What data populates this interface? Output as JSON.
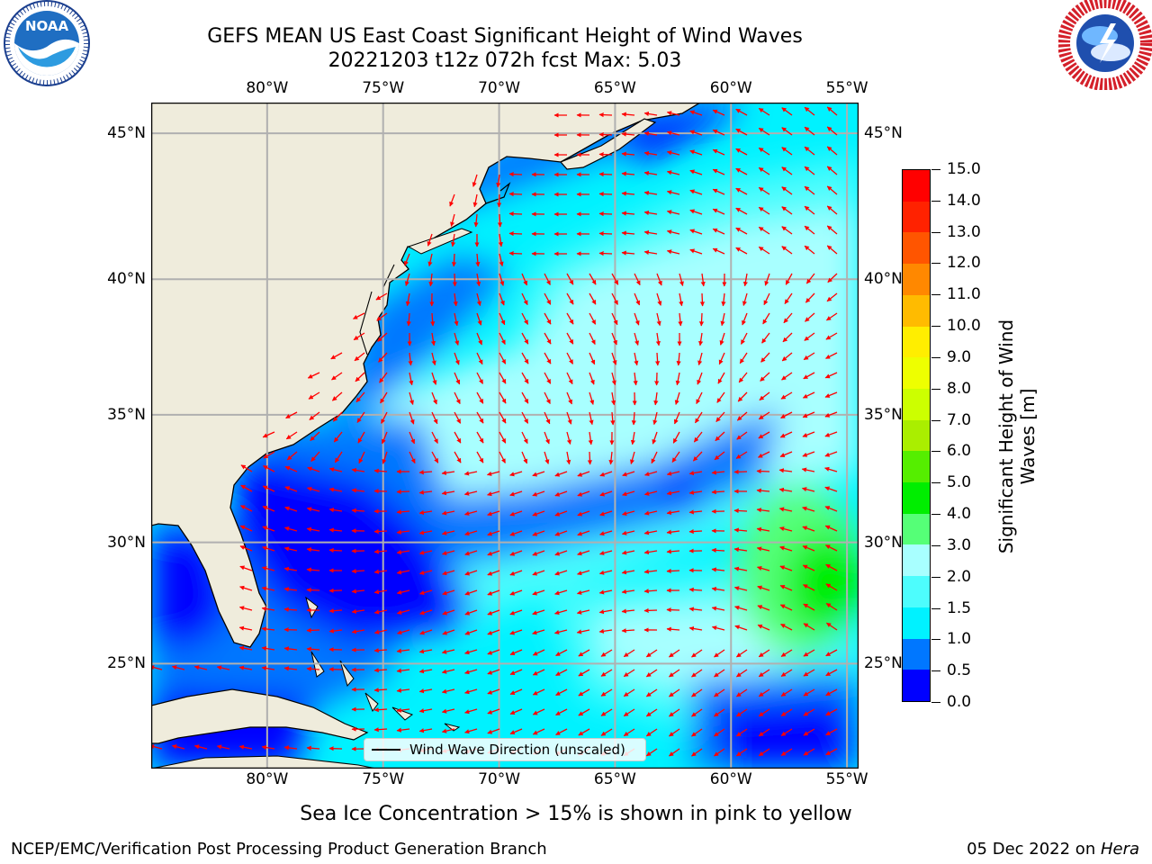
{
  "title": {
    "line1": "GEFS MEAN US East Coast Significant Height of Wind Waves",
    "line2": "20221203 t12z 072h fcst   Max: 5.03"
  },
  "logos": {
    "left": {
      "icon": "noaa-logo",
      "text": "NOAA"
    },
    "right": {
      "icon": "nws-logo",
      "text": "NATIONAL WEATHER SERVICE"
    }
  },
  "axes": {
    "lon_labels": [
      "80°W",
      "75°W",
      "70°W",
      "65°W",
      "60°W",
      "55°W"
    ],
    "lat_labels": [
      "45°N",
      "40°N",
      "35°N",
      "30°N",
      "25°N"
    ],
    "lon_values": [
      -80,
      -75,
      -70,
      -65,
      -60,
      -55
    ],
    "lat_values": [
      45,
      40,
      35,
      30,
      25
    ],
    "lon_range": [
      -85,
      -54.5
    ],
    "lat_range": [
      20.5,
      46
    ]
  },
  "colorbar": {
    "title": "Significant Height of Wind Waves [m]",
    "ticks": [
      "0.0",
      "0.5",
      "1.0",
      "1.5",
      "2.0",
      "3.0",
      "4.0",
      "5.0",
      "6.0",
      "7.0",
      "8.0",
      "9.0",
      "10.0",
      "11.0",
      "12.0",
      "13.0",
      "14.0",
      "15.0"
    ],
    "colors": [
      "#0000ff",
      "#0077ff",
      "#00f2ff",
      "#4dfdfd",
      "#a8ffff",
      "#55ff77",
      "#00ee00",
      "#55ee00",
      "#aaee00",
      "#ccff00",
      "#eeff00",
      "#ffee00",
      "#ffbb00",
      "#ff8800",
      "#ff5500",
      "#ff2200",
      "#ff0000"
    ]
  },
  "legend": {
    "label": "Wind Wave Direction (unscaled)"
  },
  "colors": {
    "land": "#efecdc",
    "grid": "#b0b0b0",
    "arrow": "#ff0000"
  },
  "footer": {
    "sea_ice": "Sea Ice Concentration > 15% is shown in pink to yellow",
    "left": "NCEP/EMC/Verification Post Processing Product Generation Branch",
    "right_prefix": "05 Dec 2022 on ",
    "right_host": "Hera"
  }
}
